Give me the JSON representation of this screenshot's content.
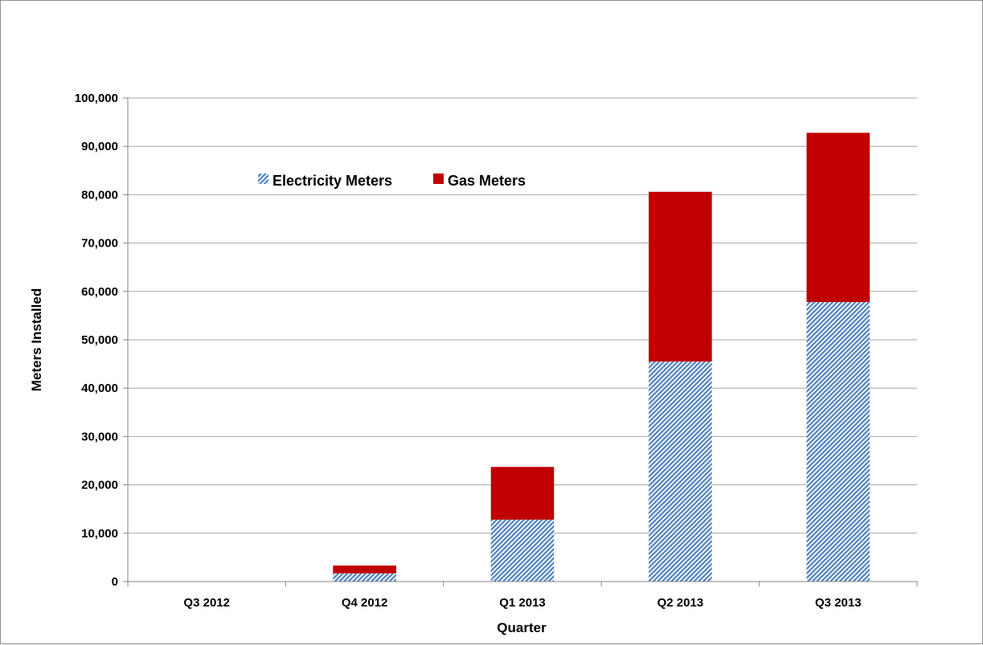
{
  "chart_data": {
    "type": "bar",
    "stacked": true,
    "categories": [
      "Q3 2012",
      "Q4 2012",
      "Q1 2013",
      "Q2 2013",
      "Q3 2013"
    ],
    "series": [
      {
        "name": "Electricity Meters",
        "values": [
          0,
          1700,
          12800,
          45500,
          57800
        ],
        "color": "#4f81bd",
        "fill": "diagonal-hatch"
      },
      {
        "name": "Gas Meters",
        "values": [
          0,
          1600,
          10900,
          35100,
          35000
        ],
        "color": "#c00000",
        "fill": "solid"
      }
    ],
    "xlabel": "Quarter",
    "ylabel": "Meters Installed",
    "ylim": [
      0,
      100000
    ],
    "yticks": [
      "0",
      "10,000",
      "20,000",
      "30,000",
      "40,000",
      "50,000",
      "60,000",
      "70,000",
      "80,000",
      "90,000",
      "100,000"
    ],
    "grid": true,
    "legend_position": "top-left inside plot"
  }
}
